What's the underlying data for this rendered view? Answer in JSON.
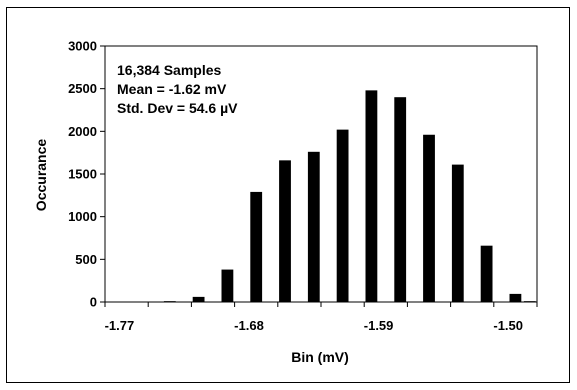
{
  "chart_data": {
    "type": "bar",
    "xlabel": "Bin (mV)",
    "ylabel": "Occurance",
    "ylim": [
      0,
      3000
    ],
    "y_ticks": [
      0,
      500,
      1000,
      1500,
      2000,
      2500,
      3000
    ],
    "y_tick_labels": [
      "0",
      "500",
      "1000",
      "1500",
      "2000",
      "2500",
      "3000"
    ],
    "x_tick_labels": [
      "-1.77",
      "-1.68",
      "-1.59",
      "-1.50"
    ],
    "x_tick_values": [
      -1.77,
      -1.68,
      -1.59,
      -1.5
    ],
    "x": [
      -1.775,
      -1.765,
      -1.755,
      -1.745,
      -1.735,
      -1.725,
      -1.715,
      -1.705,
      -1.695,
      -1.685,
      -1.675,
      -1.665,
      -1.655,
      -1.645,
      -1.635,
      -1.625,
      -1.615,
      -1.605,
      -1.595,
      -1.585,
      -1.575,
      -1.565,
      -1.555,
      -1.545,
      -1.535,
      -1.525,
      -1.515,
      -1.505,
      -1.495,
      -1.485
    ],
    "values": [
      0,
      0,
      0,
      0,
      10,
      0,
      60,
      0,
      380,
      0,
      1290,
      0,
      1660,
      0,
      1760,
      0,
      2020,
      0,
      2480,
      0,
      2400,
      0,
      1960,
      0,
      1610,
      0,
      660,
      0,
      95,
      10
    ],
    "annotations": [
      "16,384 Samples",
      "Mean = -1.62 mV",
      "Std. Dev = 54.6 µV"
    ],
    "grid": false,
    "legend": "none"
  }
}
